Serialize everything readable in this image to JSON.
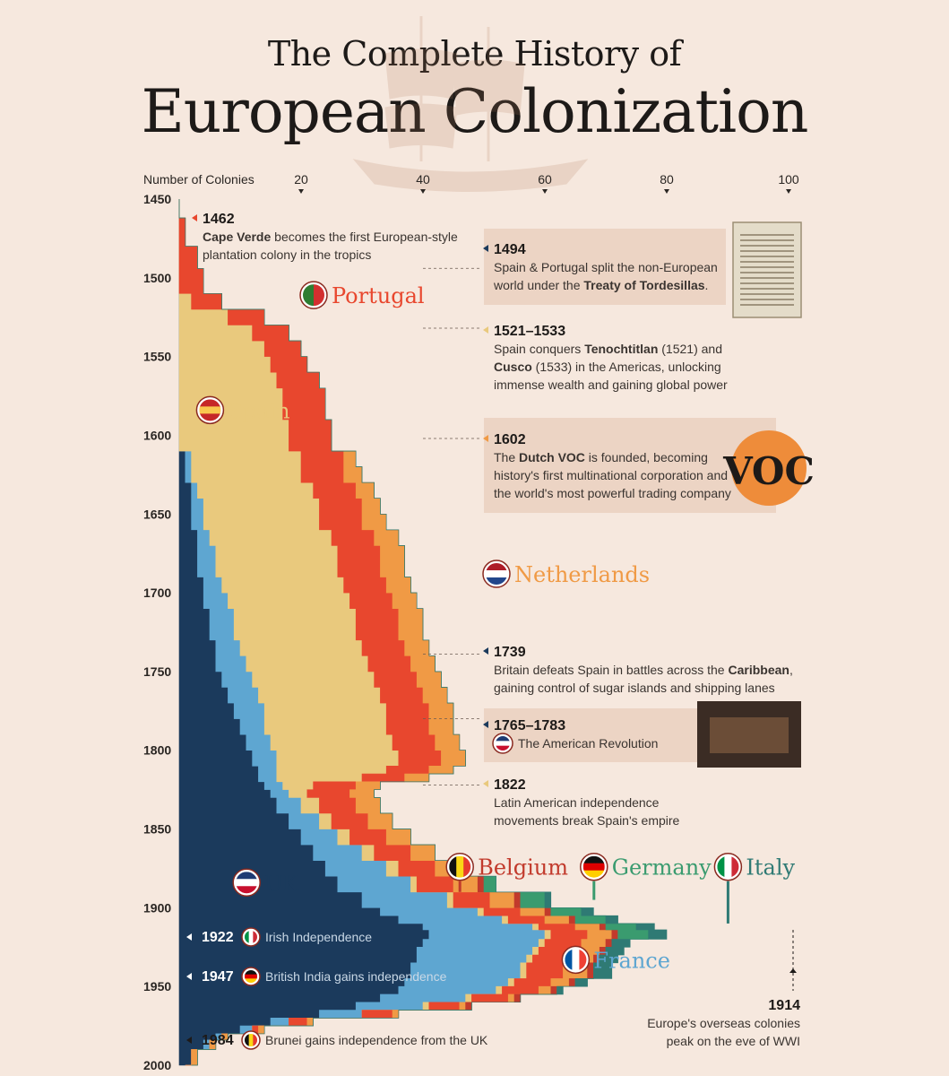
{
  "title": {
    "line1": "The Complete History of",
    "line2": "European Colonization"
  },
  "colors": {
    "background": "#f6e8de",
    "uk": "#1b3a5c",
    "france": "#5ea6d1",
    "spain": "#e9c97d",
    "portugal": "#e8472e",
    "netherlands": "#f09a45",
    "belgium": "#c23a2c",
    "germany": "#3a9b6f",
    "italy": "#2f7a74"
  },
  "axis": {
    "top_label": "Number of Colonies",
    "x_ticks": [
      {
        "value": 20,
        "label": "20"
      },
      {
        "value": 40,
        "label": "40"
      },
      {
        "value": 60,
        "label": "60"
      },
      {
        "value": 80,
        "label": "80"
      },
      {
        "value": 100,
        "label": "100"
      }
    ],
    "y_ticks": [
      {
        "value": 1450,
        "label": "1450"
      },
      {
        "value": 1500,
        "label": "1500"
      },
      {
        "value": 1550,
        "label": "1550"
      },
      {
        "value": 1600,
        "label": "1600"
      },
      {
        "value": 1650,
        "label": "1650"
      },
      {
        "value": 1700,
        "label": "1700"
      },
      {
        "value": 1750,
        "label": "1750"
      },
      {
        "value": 1800,
        "label": "1800"
      },
      {
        "value": 1850,
        "label": "1850"
      },
      {
        "value": 1900,
        "label": "1900"
      },
      {
        "value": 1950,
        "label": "1950"
      },
      {
        "value": 2000,
        "label": "2000"
      }
    ]
  },
  "chart_data": {
    "type": "area",
    "orientation": "vertical-time",
    "xlabel": "Number of Colonies",
    "ylabel": "",
    "xlim": [
      0,
      100
    ],
    "ylim": [
      1450,
      2000
    ],
    "years": [
      1450,
      1462,
      1480,
      1494,
      1500,
      1510,
      1520,
      1530,
      1540,
      1550,
      1560,
      1570,
      1580,
      1590,
      1600,
      1610,
      1620,
      1630,
      1640,
      1650,
      1660,
      1670,
      1680,
      1690,
      1700,
      1710,
      1720,
      1730,
      1740,
      1750,
      1760,
      1770,
      1780,
      1790,
      1800,
      1810,
      1815,
      1820,
      1825,
      1830,
      1840,
      1850,
      1860,
      1870,
      1880,
      1890,
      1900,
      1905,
      1910,
      1914,
      1920,
      1925,
      1930,
      1935,
      1940,
      1945,
      1950,
      1955,
      1960,
      1965,
      1970,
      1975,
      1980,
      1984,
      1990,
      2000
    ],
    "series": [
      {
        "name": "UK",
        "color_key": "uk",
        "values": [
          0,
          0,
          0,
          0,
          0,
          0,
          0,
          0,
          0,
          0,
          0,
          0,
          0,
          0,
          0,
          1,
          1,
          2,
          2,
          2,
          3,
          3,
          3,
          4,
          4,
          5,
          5,
          6,
          6,
          7,
          8,
          9,
          10,
          11,
          12,
          13,
          13,
          14,
          15,
          16,
          18,
          20,
          22,
          24,
          26,
          30,
          33,
          36,
          40,
          41,
          40,
          39,
          39,
          38,
          38,
          37,
          36,
          33,
          29,
          23,
          15,
          10,
          6,
          4,
          2,
          1
        ]
      },
      {
        "name": "France",
        "color_key": "france",
        "values": [
          0,
          0,
          0,
          0,
          0,
          0,
          0,
          0,
          0,
          0,
          0,
          0,
          0,
          0,
          0,
          1,
          1,
          1,
          2,
          2,
          2,
          3,
          3,
          3,
          4,
          4,
          4,
          4,
          5,
          5,
          5,
          5,
          4,
          4,
          4,
          3,
          3,
          3,
          3,
          4,
          5,
          6,
          8,
          10,
          12,
          14,
          16,
          17,
          18,
          19,
          19,
          19,
          18,
          18,
          18,
          17,
          16,
          14,
          11,
          7,
          3,
          2,
          1,
          1,
          0,
          0
        ]
      },
      {
        "name": "Spain",
        "color_key": "spain",
        "values": [
          0,
          0,
          0,
          0,
          0,
          2,
          8,
          12,
          14,
          15,
          16,
          17,
          17,
          18,
          18,
          18,
          18,
          19,
          19,
          19,
          20,
          20,
          20,
          20,
          20,
          20,
          20,
          20,
          20,
          20,
          20,
          20,
          20,
          20,
          20,
          18,
          14,
          5,
          3,
          3,
          2,
          2,
          2,
          2,
          1,
          1,
          1,
          1,
          1,
          1,
          1,
          1,
          1,
          1,
          1,
          1,
          1,
          1,
          1,
          0,
          0,
          0,
          0,
          0,
          0,
          0
        ]
      },
      {
        "name": "Portugal",
        "color_key": "portugal",
        "values": [
          0,
          1,
          3,
          4,
          4,
          5,
          6,
          6,
          6,
          6,
          7,
          7,
          7,
          7,
          7,
          7,
          7,
          7,
          7,
          7,
          7,
          7,
          7,
          7,
          7,
          7,
          7,
          7,
          7,
          7,
          7,
          7,
          7,
          7,
          7,
          7,
          7,
          7,
          7,
          6,
          6,
          6,
          6,
          6,
          6,
          6,
          6,
          6,
          6,
          6,
          6,
          6,
          6,
          6,
          6,
          6,
          6,
          6,
          5,
          5,
          3,
          1,
          0,
          0,
          0,
          0
        ]
      },
      {
        "name": "Netherlands",
        "color_key": "netherlands",
        "values": [
          0,
          0,
          0,
          0,
          0,
          0,
          0,
          0,
          0,
          0,
          0,
          0,
          0,
          0,
          0,
          2,
          3,
          3,
          3,
          4,
          4,
          4,
          4,
          4,
          4,
          4,
          4,
          4,
          4,
          4,
          4,
          4,
          4,
          4,
          4,
          4,
          4,
          4,
          4,
          4,
          4,
          4,
          4,
          4,
          4,
          4,
          4,
          4,
          4,
          4,
          4,
          4,
          4,
          4,
          4,
          3,
          2,
          1,
          1,
          1,
          1,
          1,
          1,
          1,
          1,
          1
        ]
      },
      {
        "name": "Belgium",
        "color_key": "belgium",
        "values": [
          0,
          0,
          0,
          0,
          0,
          0,
          0,
          0,
          0,
          0,
          0,
          0,
          0,
          0,
          0,
          0,
          0,
          0,
          0,
          0,
          0,
          0,
          0,
          0,
          0,
          0,
          0,
          0,
          0,
          0,
          0,
          0,
          0,
          0,
          0,
          0,
          0,
          0,
          0,
          0,
          0,
          0,
          0,
          0,
          1,
          1,
          1,
          1,
          1,
          1,
          1,
          1,
          1,
          1,
          1,
          1,
          1,
          1,
          1,
          0,
          0,
          0,
          0,
          0,
          0,
          0
        ]
      },
      {
        "name": "Germany",
        "color_key": "germany",
        "values": [
          0,
          0,
          0,
          0,
          0,
          0,
          0,
          0,
          0,
          0,
          0,
          0,
          0,
          0,
          0,
          0,
          0,
          0,
          0,
          0,
          0,
          0,
          0,
          0,
          0,
          0,
          0,
          0,
          0,
          0,
          0,
          0,
          0,
          0,
          0,
          0,
          0,
          0,
          0,
          0,
          0,
          0,
          0,
          0,
          2,
          4,
          5,
          5,
          5,
          5,
          0,
          0,
          0,
          0,
          0,
          0,
          0,
          0,
          0,
          0,
          0,
          0,
          0,
          0,
          0,
          0
        ]
      },
      {
        "name": "Italy",
        "color_key": "italy",
        "values": [
          0,
          0,
          0,
          0,
          0,
          0,
          0,
          0,
          0,
          0,
          0,
          0,
          0,
          0,
          0,
          0,
          0,
          0,
          0,
          0,
          0,
          0,
          0,
          0,
          0,
          0,
          0,
          0,
          0,
          0,
          0,
          0,
          0,
          0,
          0,
          0,
          0,
          0,
          0,
          0,
          0,
          0,
          0,
          0,
          0,
          1,
          2,
          2,
          3,
          3,
          3,
          3,
          3,
          3,
          3,
          2,
          1,
          0,
          0,
          0,
          0,
          0,
          0,
          0,
          0,
          0
        ]
      }
    ],
    "series_labels": [
      {
        "text": "Portugal",
        "key": "portugal",
        "year": 1511,
        "value": 20,
        "flag": "flag-portugal"
      },
      {
        "text": "Spain",
        "key": "spain",
        "year": 1584,
        "value": 3,
        "flag": "flag-spain"
      },
      {
        "text": "Netherlands",
        "key": "netherlands",
        "year": 1688,
        "value": 50,
        "flag": "flag-netherlands"
      },
      {
        "text": "UK",
        "key": "uk",
        "year": 1884,
        "value": 9,
        "flag": "flag-uk"
      },
      {
        "text": "Belgium",
        "key": "belgium",
        "year": 1874,
        "value": 44,
        "flag": "flag-belgium"
      },
      {
        "text": "Germany",
        "key": "germany",
        "year": 1874,
        "value": 66,
        "flag": "flag-germany"
      },
      {
        "text": "Italy",
        "key": "italy",
        "year": 1874,
        "value": 88,
        "flag": "flag-italy"
      },
      {
        "text": "France",
        "key": "france",
        "year": 1933,
        "value": 63,
        "flag": "flag-france"
      }
    ],
    "annotations": [
      {
        "year_label": "1462",
        "year": 1462,
        "color_key": "portugal",
        "lines": [
          [
            {
              "t": "Cape Verde",
              "b": true
            },
            {
              "t": " becomes the first European-style"
            }
          ],
          [
            {
              "t": "plantation colony in the tropics"
            }
          ]
        ]
      },
      {
        "year_label": "1494",
        "year": 1494,
        "color_key": "uk",
        "lines": [
          [
            {
              "t": "Spain & Portugal split the non-European"
            }
          ],
          [
            {
              "t": "world under the "
            },
            {
              "t": "Treaty of Tordesillas",
              "b": true
            },
            {
              "t": "."
            }
          ]
        ]
      },
      {
        "year_label": "1521–1533",
        "year": 1532,
        "color_key": "spain",
        "lines": [
          [
            {
              "t": "Spain conquers "
            },
            {
              "t": "Tenochtitlan",
              "b": true
            },
            {
              "t": " (1521) and"
            }
          ],
          [
            {
              "t": "Cusco",
              "b": true
            },
            {
              "t": " (1533) in the Americas, unlocking"
            }
          ],
          [
            {
              "t": "immense wealth and gaining global power"
            }
          ]
        ]
      },
      {
        "year_label": "1602",
        "year": 1602,
        "color_key": "netherlands",
        "lines": [
          [
            {
              "t": "The "
            },
            {
              "t": "Dutch VOC",
              "b": true
            },
            {
              "t": " is founded, becoming"
            }
          ],
          [
            {
              "t": "history's first multinational corporation and"
            }
          ],
          [
            {
              "t": "the world's most powerful trading company"
            }
          ]
        ]
      },
      {
        "year_label": "1739",
        "year": 1739,
        "color_key": "uk",
        "lines": [
          [
            {
              "t": "Britain defeats Spain in battles across the "
            },
            {
              "t": "Caribbean",
              "b": true
            },
            {
              "t": ","
            }
          ],
          [
            {
              "t": "gaining control of sugar islands and shipping lanes"
            }
          ]
        ]
      },
      {
        "year_label": "1765–1783",
        "year": 1780,
        "color_key": "uk",
        "lines": [
          [
            {
              "t": "The American Revolution"
            }
          ]
        ]
      },
      {
        "year_label": "1822",
        "year": 1822,
        "color_key": "spain",
        "lines": [
          [
            {
              "t": "Latin American independence"
            }
          ],
          [
            {
              "t": "movements break Spain's empire"
            }
          ]
        ]
      }
    ],
    "peak_note": {
      "year_label": "1914",
      "year": 1914,
      "lines": [
        "Europe's overseas colonies",
        "peak on the eve of WWI"
      ]
    },
    "left_events": [
      {
        "year_label": "1922",
        "year": 1922,
        "text": "Irish Independence"
      },
      {
        "year_label": "1947",
        "year": 1947,
        "text": "British India gains independence"
      },
      {
        "year_label": "1984",
        "year": 1984,
        "text": "Brunei gains independence from the UK"
      }
    ],
    "images": {
      "voc_logo_text": "VOC"
    }
  }
}
